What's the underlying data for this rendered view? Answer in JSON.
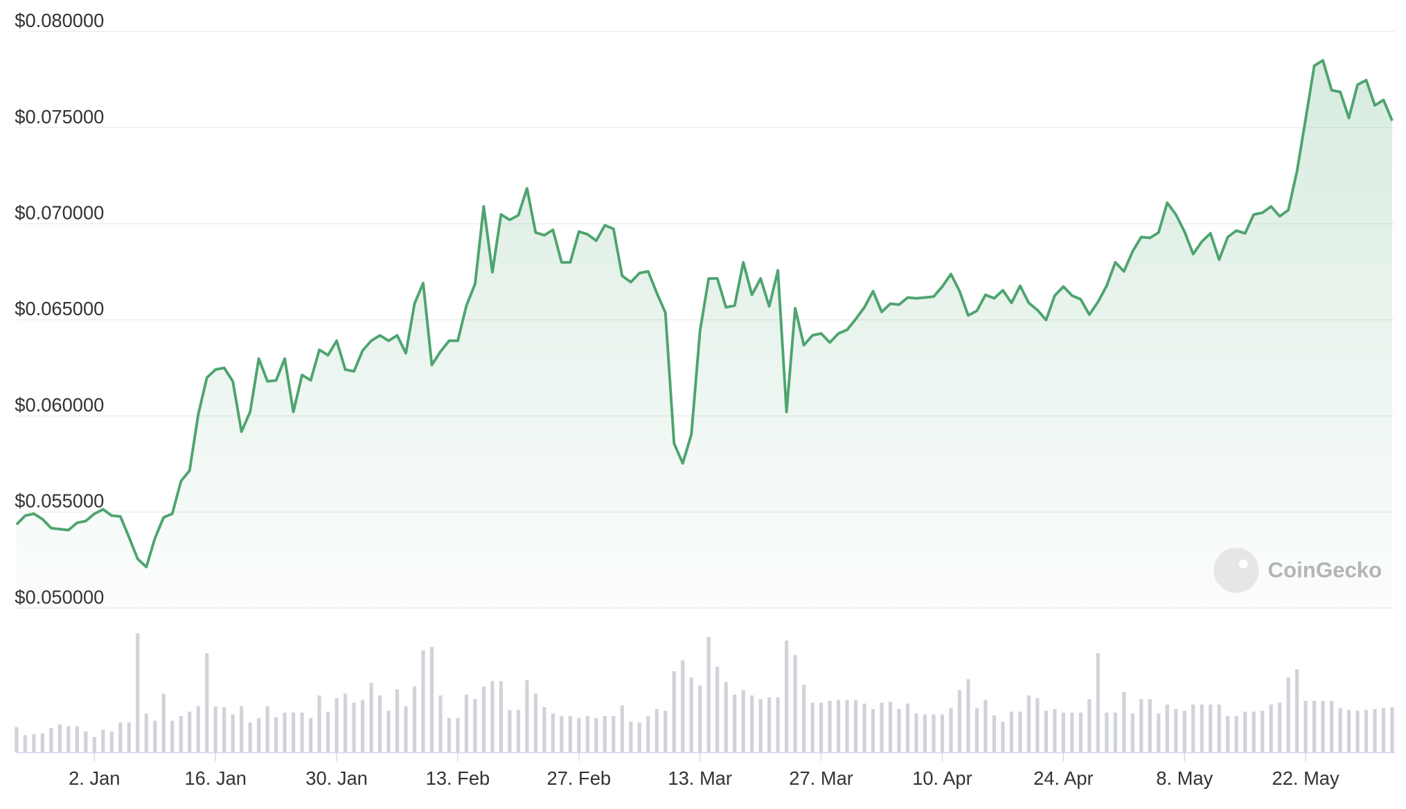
{
  "chart_data": {
    "type": "line",
    "watermark": "CoinGecko",
    "grid": true,
    "xlim": [
      -9,
      150
    ],
    "xticks": [
      {
        "value": 0,
        "label": "2. Jan"
      },
      {
        "value": 14,
        "label": "16. Jan"
      },
      {
        "value": 28,
        "label": "30. Jan"
      },
      {
        "value": 42,
        "label": "13. Feb"
      },
      {
        "value": 56,
        "label": "27. Feb"
      },
      {
        "value": 70,
        "label": "13. Mar"
      },
      {
        "value": 84,
        "label": "27. Mar"
      },
      {
        "value": 98,
        "label": "10. Apr"
      },
      {
        "value": 112,
        "label": "24. Apr"
      },
      {
        "value": 126,
        "label": "8. May"
      },
      {
        "value": 140,
        "label": "22. May"
      }
    ],
    "ylim": [
      0.05,
      0.08
    ],
    "yticks": [
      {
        "value": 0.05,
        "label": "$0.050000"
      },
      {
        "value": 0.055,
        "label": "$0.055000"
      },
      {
        "value": 0.06,
        "label": "$0.060000"
      },
      {
        "value": 0.065,
        "label": "$0.065000"
      },
      {
        "value": 0.07,
        "label": "$0.070000"
      },
      {
        "value": 0.075,
        "label": "$0.075000"
      },
      {
        "value": 0.08,
        "label": "$0.080000"
      }
    ],
    "x": [
      -9,
      -8,
      -7,
      -6,
      -5,
      -4,
      -3,
      -2,
      -1,
      0,
      1,
      2,
      3,
      4,
      5,
      6,
      7,
      8,
      9,
      10,
      11,
      12,
      13,
      14,
      15,
      16,
      17,
      18,
      19,
      20,
      21,
      22,
      23,
      24,
      25,
      26,
      27,
      28,
      29,
      30,
      31,
      32,
      33,
      34,
      35,
      36,
      37,
      38,
      39,
      40,
      41,
      42,
      43,
      44,
      45,
      46,
      47,
      48,
      49,
      50,
      51,
      52,
      53,
      54,
      55,
      56,
      57,
      58,
      59,
      60,
      61,
      62,
      63,
      64,
      65,
      66,
      67,
      68,
      69,
      70,
      71,
      72,
      73,
      74,
      75,
      76,
      77,
      78,
      79,
      80,
      81,
      82,
      83,
      84,
      85,
      86,
      87,
      88,
      89,
      90,
      91,
      92,
      93,
      94,
      95,
      96,
      97,
      98,
      99,
      100,
      101,
      102,
      103,
      104,
      105,
      106,
      107,
      108,
      109,
      110,
      111,
      112,
      113,
      114,
      115,
      116,
      117,
      118,
      119,
      120,
      121,
      122,
      123,
      124,
      125,
      126,
      127,
      128,
      129,
      130,
      131,
      132,
      133,
      134,
      135,
      136,
      137,
      138,
      139,
      140,
      141,
      142,
      143,
      144,
      145,
      146,
      147,
      148,
      149,
      150
    ],
    "series": [
      {
        "type": "line",
        "color": "#4ea46f",
        "values": [
          0.05435,
          0.05481,
          0.05491,
          0.05463,
          0.05416,
          0.05411,
          0.05406,
          0.05444,
          0.05453,
          0.05491,
          0.05514,
          0.05481,
          0.05477,
          0.05369,
          0.05256,
          0.05214,
          0.05364,
          0.05472,
          0.05491,
          0.0566,
          0.05716,
          0.06007,
          0.06199,
          0.06241,
          0.0625,
          0.0618,
          0.05918,
          0.06021,
          0.06298,
          0.0618,
          0.06185,
          0.06298,
          0.06021,
          0.06213,
          0.06185,
          0.06344,
          0.06316,
          0.06391,
          0.06241,
          0.06232,
          0.0634,
          0.06391,
          0.06419,
          0.06391,
          0.06419,
          0.06326,
          0.06584,
          0.06691,
          0.06265,
          0.06335,
          0.06391,
          0.06391,
          0.06574,
          0.06687,
          0.0709,
          0.06748,
          0.07048,
          0.0702,
          0.07044,
          0.07184,
          0.06954,
          0.0694,
          0.06968,
          0.06799,
          0.06799,
          0.06959,
          0.06945,
          0.06912,
          0.06992,
          0.06973,
          0.06729,
          0.06696,
          0.06743,
          0.06752,
          0.0664,
          0.06537,
          0.05857,
          0.05753,
          0.05904,
          0.06443,
          0.06715,
          0.06715,
          0.06565,
          0.06574,
          0.06799,
          0.0663,
          0.06715,
          0.0657,
          0.06757,
          0.06021,
          0.0656,
          0.06368,
          0.06419,
          0.06429,
          0.06382,
          0.06429,
          0.06448,
          0.06504,
          0.06565,
          0.06649,
          0.06541,
          0.06584,
          0.06579,
          0.06616,
          0.06612,
          0.06616,
          0.06621,
          0.06673,
          0.06738,
          0.06649,
          0.06523,
          0.06547,
          0.0663,
          0.06612,
          0.06654,
          0.06588,
          0.06677,
          0.06588,
          0.06551,
          0.06499,
          0.06626,
          0.06673,
          0.06626,
          0.06607,
          0.06527,
          0.06593,
          0.06677,
          0.06799,
          0.06752,
          0.06856,
          0.06931,
          0.06926,
          0.06954,
          0.07109,
          0.07048,
          0.06959,
          0.06842,
          0.06907,
          0.0695,
          0.06813,
          0.06931,
          0.06964,
          0.0695,
          0.07048,
          0.07057,
          0.0709,
          0.07039,
          0.07071,
          0.07273,
          0.07545,
          0.07822,
          0.0785,
          0.07695,
          0.07686,
          0.0755,
          0.07723,
          0.07747,
          0.07616,
          0.07644,
          0.07536
        ]
      },
      {
        "type": "bar",
        "color": "#d1d3da",
        "values": [
          28,
          19,
          20,
          21,
          27,
          31,
          29,
          29,
          23,
          17,
          25,
          23,
          33,
          33,
          132,
          43,
          35,
          65,
          35,
          40,
          45,
          51,
          110,
          51,
          50,
          42,
          51,
          33,
          38,
          51,
          39,
          44,
          44,
          44,
          38,
          63,
          45,
          60,
          65,
          55,
          58,
          77,
          63,
          46,
          70,
          51,
          73,
          113,
          117,
          63,
          38,
          38,
          64,
          59,
          73,
          79,
          79,
          47,
          47,
          80,
          65,
          50,
          43,
          40,
          40,
          38,
          40,
          38,
          40,
          40,
          52,
          34,
          33,
          40,
          48,
          46,
          90,
          102,
          83,
          74,
          128,
          95,
          78,
          64,
          69,
          63,
          59,
          61,
          61,
          124,
          108,
          75,
          55,
          55,
          57,
          58,
          58,
          58,
          54,
          48,
          55,
          56,
          48,
          54,
          43,
          42,
          42,
          42,
          49,
          69,
          81,
          49,
          58,
          41,
          34,
          45,
          45,
          63,
          60,
          46,
          48,
          44,
          44,
          44,
          59,
          110,
          44,
          44,
          67,
          43,
          59,
          59,
          43,
          53,
          48,
          46,
          53,
          53,
          53,
          53,
          40,
          40,
          45,
          45,
          46,
          53,
          55,
          83,
          92,
          57,
          57,
          57,
          57,
          49,
          47,
          46,
          47,
          48,
          49,
          50
        ]
      }
    ]
  }
}
